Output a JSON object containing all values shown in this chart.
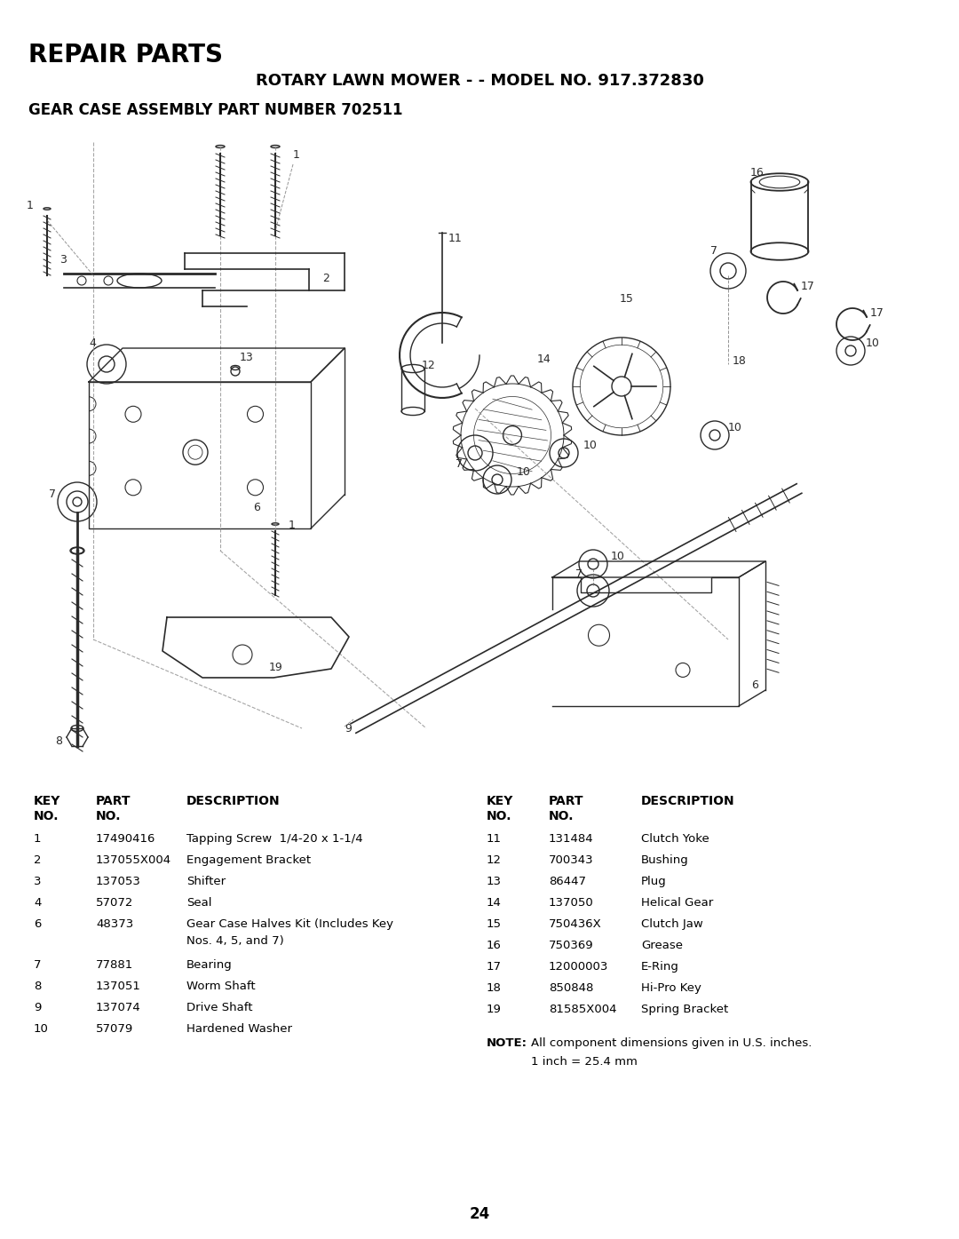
{
  "title_repair": "REPAIR PARTS",
  "title_model": "ROTARY LAWN MOWER - - MODEL NO. 917.372830",
  "title_assembly": "GEAR CASE ASSEMBLY PART NUMBER 702511",
  "page_number": "24",
  "bg_color": "#ffffff",
  "text_color": "#000000",
  "left_table": {
    "rows": [
      [
        "1",
        "17490416",
        "Tapping Screw  1/4-20 x 1-1/4"
      ],
      [
        "2",
        "137055X004",
        "Engagement Bracket"
      ],
      [
        "3",
        "137053",
        "Shifter"
      ],
      [
        "4",
        "57072",
        "Seal"
      ],
      [
        "6",
        "48373",
        "Gear Case Halves Kit (Includes Key\nNos. 4, 5, and 7)"
      ],
      [
        "7",
        "77881",
        "Bearing"
      ],
      [
        "8",
        "137051",
        "Worm Shaft"
      ],
      [
        "9",
        "137074",
        "Drive Shaft"
      ],
      [
        "10",
        "57079",
        "Hardened Washer"
      ]
    ]
  },
  "right_table": {
    "rows": [
      [
        "11",
        "131484",
        "Clutch Yoke"
      ],
      [
        "12",
        "700343",
        "Bushing"
      ],
      [
        "13",
        "86447",
        "Plug"
      ],
      [
        "14",
        "137050",
        "Helical Gear"
      ],
      [
        "15",
        "750436X",
        "Clutch Jaw"
      ],
      [
        "16",
        "750369",
        "Grease"
      ],
      [
        "17",
        "12000003",
        "E-Ring"
      ],
      [
        "18",
        "850848",
        "Hi-Pro Key"
      ],
      [
        "19",
        "81585X004",
        "Spring Bracket"
      ]
    ]
  }
}
